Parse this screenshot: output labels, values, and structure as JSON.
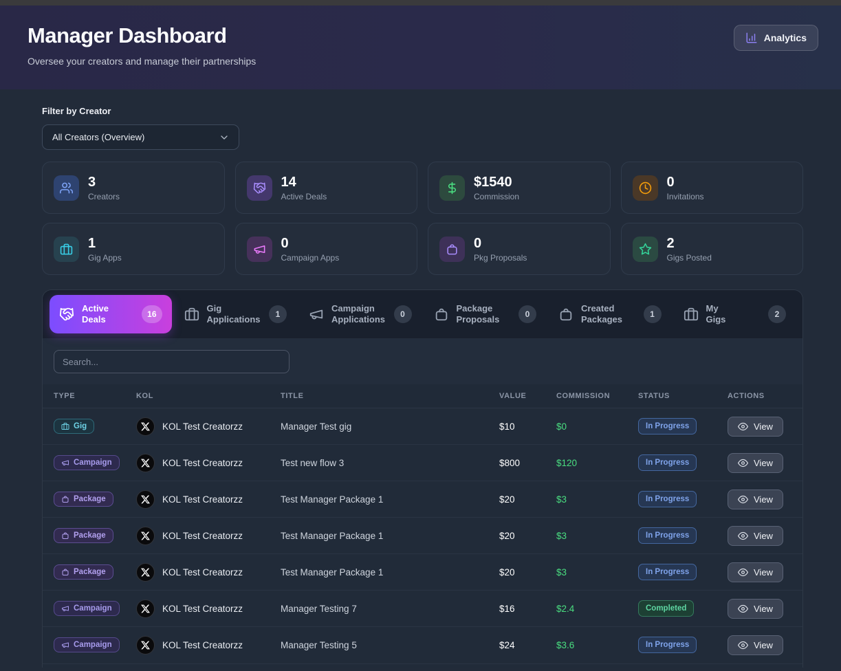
{
  "colors": {
    "accent_start": "#7c4dff",
    "accent_end": "#c93fdd",
    "accent_icon": "#8b7ff0",
    "success": "#4ade80"
  },
  "header": {
    "title": "Manager Dashboard",
    "subtitle": "Oversee your creators and manage their partnerships",
    "analytics_label": "Analytics",
    "analytics_icon": "bar-chart"
  },
  "filter": {
    "label": "Filter by Creator",
    "selected": "All Creators (Overview)",
    "chevron_icon": "chevron-down"
  },
  "stats": [
    {
      "value": "3",
      "label": "Creators",
      "icon": "users",
      "icon_color": "#7da2f5",
      "box_bg": "#2e4370"
    },
    {
      "value": "14",
      "label": "Active Deals",
      "icon": "handshake",
      "icon_color": "#a78bfa",
      "box_bg": "#44386c"
    },
    {
      "value": "$1540",
      "label": "Commission",
      "icon": "dollar",
      "icon_color": "#4ade80",
      "box_bg": "#2d4a3e"
    },
    {
      "value": "0",
      "label": "Invitations",
      "icon": "clock",
      "icon_color": "#f59e0b",
      "box_bg": "#4a3827"
    },
    {
      "value": "1",
      "label": "Gig Apps",
      "icon": "briefcase",
      "icon_color": "#38cfe8",
      "box_bg": "#27424f"
    },
    {
      "value": "0",
      "label": "Campaign Apps",
      "icon": "megaphone",
      "icon_color": "#e879f9",
      "box_bg": "#46315a"
    },
    {
      "value": "0",
      "label": "Pkg Proposals",
      "icon": "bag",
      "icon_color": "#a78bfa",
      "box_bg": "#3e3158"
    },
    {
      "value": "2",
      "label": "Gigs Posted",
      "icon": "star",
      "icon_color": "#34d399",
      "box_bg": "#2b4a42"
    }
  ],
  "tabs": [
    {
      "label": "Active Deals",
      "icon": "handshake",
      "count": "16",
      "active": true
    },
    {
      "label": "Gig Applications",
      "icon": "briefcase",
      "count": "1",
      "active": false
    },
    {
      "label": "Campaign Applications",
      "icon": "megaphone",
      "count": "0",
      "active": false
    },
    {
      "label": "Package Proposals",
      "icon": "bag",
      "count": "0",
      "active": false
    },
    {
      "label": "Created Packages",
      "icon": "bag",
      "count": "1",
      "active": false
    },
    {
      "label": "My Gigs",
      "icon": "briefcase",
      "count": "2",
      "active": false
    }
  ],
  "search": {
    "placeholder": "Search..."
  },
  "table": {
    "columns": [
      "TYPE",
      "KOL",
      "TITLE",
      "VALUE",
      "COMMISSION",
      "STATUS",
      "ACTIONS"
    ],
    "view_label": "View",
    "view_icon": "eye",
    "avatar_icon": "x-logo",
    "rows": [
      {
        "type": "Gig",
        "type_icon": "briefcase",
        "kol": "KOL Test Creatorzz",
        "title": "Manager Test gig",
        "value": "$10",
        "commission": "$0",
        "status": "In Progress"
      },
      {
        "type": "Campaign",
        "type_icon": "megaphone",
        "kol": "KOL Test Creatorzz",
        "title": "Test new flow 3",
        "value": "$800",
        "commission": "$120",
        "status": "In Progress"
      },
      {
        "type": "Package",
        "type_icon": "bag",
        "kol": "KOL Test Creatorzz",
        "title": "Test Manager Package 1",
        "value": "$20",
        "commission": "$3",
        "status": "In Progress"
      },
      {
        "type": "Package",
        "type_icon": "bag",
        "kol": "KOL Test Creatorzz",
        "title": "Test Manager Package 1",
        "value": "$20",
        "commission": "$3",
        "status": "In Progress"
      },
      {
        "type": "Package",
        "type_icon": "bag",
        "kol": "KOL Test Creatorzz",
        "title": "Test Manager Package 1",
        "value": "$20",
        "commission": "$3",
        "status": "In Progress"
      },
      {
        "type": "Campaign",
        "type_icon": "megaphone",
        "kol": "KOL Test Creatorzz",
        "title": "Manager Testing 7",
        "value": "$16",
        "commission": "$2.4",
        "status": "Completed"
      },
      {
        "type": "Campaign",
        "type_icon": "megaphone",
        "kol": "KOL Test Creatorzz",
        "title": "Manager Testing 5",
        "value": "$24",
        "commission": "$3.6",
        "status": "In Progress"
      }
    ]
  }
}
